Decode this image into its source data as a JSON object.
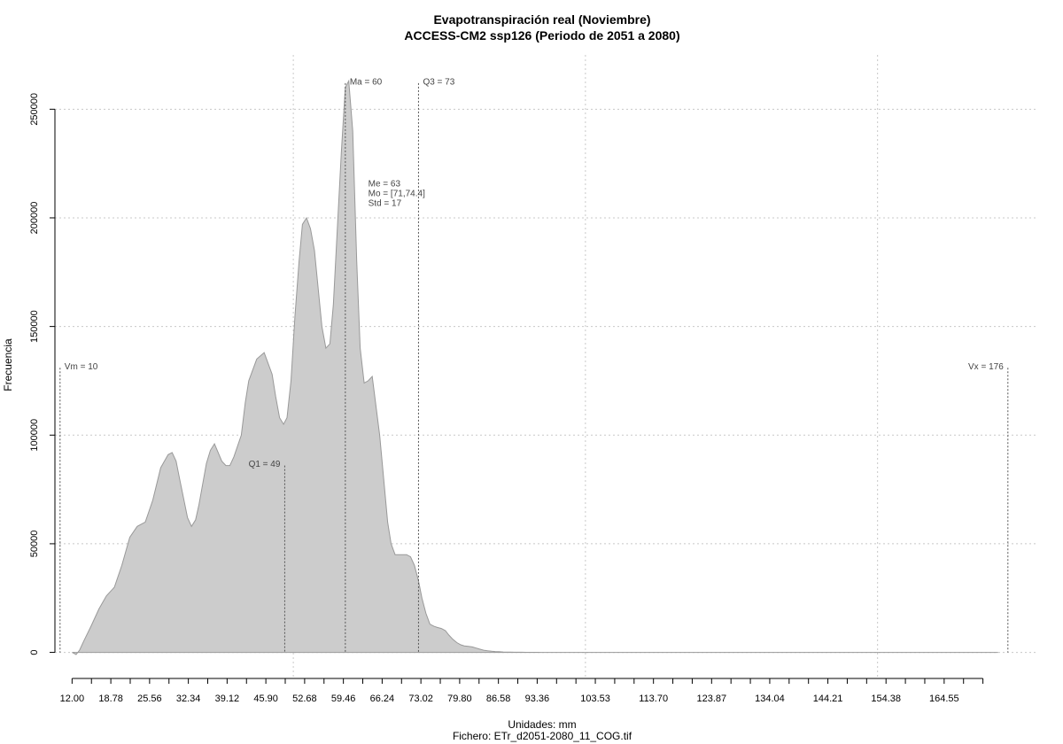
{
  "chart_data": {
    "type": "area",
    "title": "Evapotranspiración real (Noviembre)",
    "subtitle": "ACCESS-CM2 ssp126 (Periodo de 2051 a 2080)",
    "xlabel": "Unidades: mm",
    "footer": "Fichero: ETr_d2051-2080_11_COG.tif",
    "ylabel": "Frecuencia",
    "xlim": [
      9,
      181
    ],
    "ylim": [
      -12000,
      275000
    ],
    "x_ticks": [
      12.0,
      15.39,
      18.78,
      22.17,
      25.56,
      28.95,
      32.34,
      35.73,
      39.12,
      42.51,
      45.9,
      49.29,
      52.68,
      56.07,
      59.46,
      62.85,
      66.24,
      69.63,
      73.02,
      76.41,
      79.8,
      83.19,
      86.58,
      89.97,
      93.36,
      96.75,
      100.14,
      103.53,
      106.92,
      110.31,
      113.7,
      117.09,
      120.48,
      123.87,
      127.26,
      130.65,
      134.04,
      137.43,
      140.82,
      144.21,
      147.6,
      150.99,
      154.38,
      157.77,
      161.16,
      164.55,
      167.94,
      171.33
    ],
    "x_tick_labels": [
      "12.00",
      "18.78",
      "25.56",
      "32.34",
      "39.12",
      "45.90",
      "52.68",
      "59.46",
      "66.24",
      "73.02",
      "79.80",
      "86.58",
      "93.36",
      "103.53",
      "113.70",
      "123.87",
      "134.04",
      "144.21",
      "154.38",
      "164.55"
    ],
    "x_tick_label_values": [
      12.0,
      18.78,
      25.56,
      32.34,
      39.12,
      45.9,
      52.68,
      59.46,
      66.24,
      73.02,
      79.8,
      86.58,
      93.36,
      103.53,
      113.7,
      123.87,
      134.04,
      144.21,
      154.38,
      164.55
    ],
    "y_ticks": [
      0,
      50000,
      100000,
      150000,
      200000,
      250000
    ],
    "y_tick_labels": [
      "0",
      "50000",
      "100000",
      "150000",
      "200000",
      "250000"
    ],
    "x_grid": [
      50.7,
      101.8,
      152.9
    ],
    "series": [
      {
        "x": [
          12.0,
          12.7,
          13.3,
          14.0,
          15.3,
          16.7,
          18.0,
          19.4,
          20.7,
          22.1,
          23.4,
          24.8,
          26.1,
          27.5,
          28.8,
          29.5,
          30.2,
          30.8,
          32.2,
          32.9,
          33.6,
          34.2,
          35.5,
          36.2,
          36.9,
          38.2,
          38.9,
          39.6,
          40.3,
          41.6,
          42.3,
          42.9,
          44.3,
          45.6,
          47.0,
          47.6,
          48.3,
          49.0,
          49.6,
          50.3,
          51.0,
          51.7,
          52.3,
          53.0,
          53.7,
          54.4,
          55.7,
          56.4,
          57.1,
          57.7,
          58.4,
          59.1,
          59.8,
          60.4,
          61.1,
          61.8,
          62.4,
          63.1,
          63.8,
          64.5,
          65.8,
          66.5,
          67.2,
          67.8,
          68.5,
          69.2,
          69.9,
          70.5,
          71.2,
          71.9,
          72.6,
          73.2,
          73.9,
          74.6,
          75.3,
          75.9,
          76.6,
          77.3,
          77.9,
          78.6,
          79.3,
          80.0,
          80.6,
          81.3,
          82.0,
          82.7,
          83.3,
          84.0,
          84.7,
          85.4,
          86.0,
          86.7,
          87.4,
          88.0,
          88.7,
          89.4,
          90.1,
          90.7,
          91.4,
          92.1,
          92.8,
          93.4,
          94.1,
          94.8,
          95.5,
          96.1,
          97.5,
          98.8,
          100.2,
          101.5,
          102.9,
          104.2,
          105.6,
          106.9,
          108.3,
          109.6,
          111.0,
          112.3,
          113.7,
          115.0,
          116.4,
          117.7,
          130.0,
          150.0,
          170.0,
          174.0
        ],
        "y": [
          0,
          -1000,
          1000,
          5000,
          12000,
          20000,
          26000,
          30000,
          40000,
          53000,
          58000,
          60000,
          70000,
          85000,
          91000,
          92000,
          88000,
          80000,
          62000,
          58000,
          61000,
          68000,
          87000,
          93000,
          96000,
          88000,
          86000,
          86000,
          90000,
          100000,
          115000,
          125000,
          135000,
          138000,
          128000,
          118000,
          108000,
          105000,
          108000,
          125000,
          155000,
          180000,
          197000,
          200000,
          195000,
          185000,
          150000,
          140000,
          142000,
          160000,
          195000,
          230000,
          260000,
          263000,
          240000,
          180000,
          140000,
          124000,
          125000,
          127000,
          100000,
          80000,
          60000,
          50000,
          45000,
          45000,
          45000,
          45000,
          44000,
          40000,
          33000,
          25000,
          18000,
          13000,
          12000,
          11500,
          11000,
          10000,
          8000,
          6000,
          4500,
          3500,
          3000,
          2800,
          2500,
          2000,
          1500,
          1000,
          700,
          500,
          400,
          300,
          200,
          150,
          100,
          80,
          60,
          50,
          40,
          30,
          20,
          10,
          0,
          0,
          0,
          0,
          0,
          0,
          0,
          0,
          0,
          0,
          0,
          0,
          0,
          0,
          0,
          0,
          0,
          0,
          0,
          0,
          0,
          0,
          0,
          0
        ]
      }
    ],
    "annotations": [
      {
        "label": "Vm = 10",
        "x": 9.9,
        "line_top": 131000,
        "text_y": 132000,
        "side": "right"
      },
      {
        "label": "Vx = 176",
        "x": 175.7,
        "line_top": 131000,
        "text_y": 132000,
        "side": "left"
      },
      {
        "label": "Q1 = 49",
        "x": 49.2,
        "line_top": 86000,
        "text_y": 87000,
        "side": "left"
      },
      {
        "label": "Ma = 60",
        "x": 59.8,
        "line_top": 262000,
        "text_y": 263000,
        "side": "right"
      },
      {
        "label": "Q3 = 73",
        "x": 72.6,
        "line_top": 262000,
        "text_y": 263000,
        "side": "right"
      }
    ],
    "stats_box": {
      "anchor_x": 63.8,
      "anchor_y": 216000,
      "lines": [
        "Me = 63",
        "Mo = [71,74.4]",
        "Std = 17"
      ]
    },
    "fill_color": "#cccccc",
    "line_color": "#999999"
  }
}
